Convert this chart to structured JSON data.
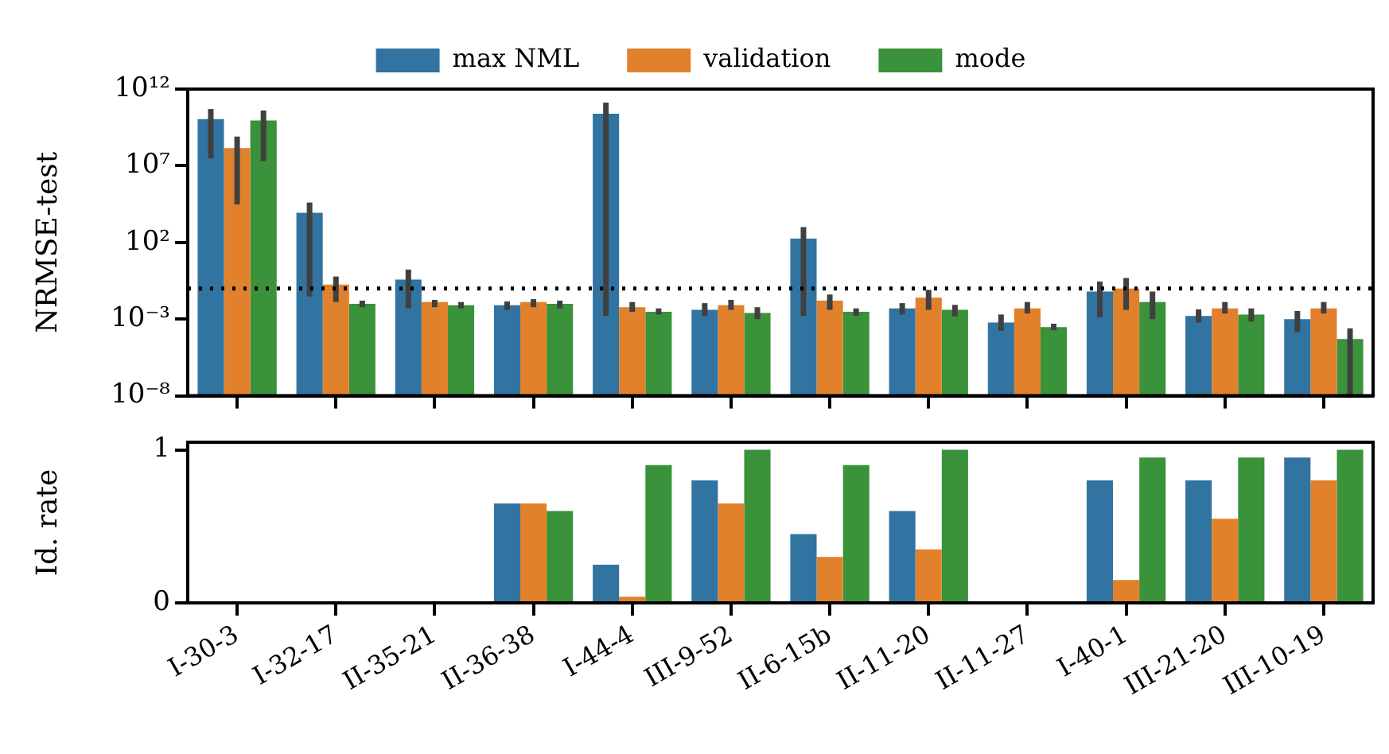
{
  "chart_data": [
    {
      "type": "bar",
      "ylabel": "NRMSE-test",
      "log": "y",
      "legend": "top",
      "tick_labels": "y",
      "categories": [
        null,
        null,
        null,
        null,
        null,
        null,
        null,
        null,
        null,
        null,
        null,
        null
      ],
      "ylim": [
        1e-08,
        1000000000000.0
      ],
      "yticks": [
        {
          "value": 1e-08,
          "label": "10⁻⁸"
        },
        {
          "value": 0.001,
          "label": "10⁻³"
        },
        {
          "value": 100,
          "label": "10²"
        },
        {
          "value": 10000000.0,
          "label": "10⁷"
        },
        {
          "value": 1000000000000.0,
          "label": "10¹²"
        }
      ],
      "ref_lines": [
        {
          "axis": "y",
          "value": 0.1,
          "color": "#000000",
          "line_style": "dotted"
        }
      ],
      "series": [
        {
          "name": "max NML",
          "color": "#3274a1",
          "values": [
            11000000000.0,
            8500,
            0.38,
            0.008,
            25000000000.0,
            0.004,
            180,
            0.005,
            0.0006,
            0.063,
            0.0016,
            0.001
          ],
          "errors": [
            [
              30000000.0,
              50000000000.0
            ],
            [
              0.03,
              40000
            ],
            [
              0.005,
              1.7
            ],
            [
              0.004,
              0.014
            ],
            [
              0.0016,
              130000000000.0
            ],
            [
              0.0016,
              0.011
            ],
            [
              0.0016,
              1000
            ],
            [
              0.002,
              0.011
            ],
            [
              0.00017,
              0.002
            ],
            [
              0.0013,
              0.28
            ],
            [
              0.0006,
              0.0043
            ],
            [
              0.00014,
              0.0034
            ]
          ]
        },
        {
          "name": "validation",
          "color": "#e1812c",
          "values": [
            140000000.0,
            0.18,
            0.013,
            0.013,
            0.006,
            0.008,
            0.016,
            0.025,
            0.005,
            0.1,
            0.005,
            0.005
          ],
          "errors": [
            [
              30000,
              800000000.0
            ],
            [
              0.013,
              0.6
            ],
            [
              0.006,
              0.018
            ],
            [
              0.006,
              0.02
            ],
            [
              0.003,
              0.013
            ],
            [
              0.004,
              0.018
            ],
            [
              0.004,
              0.04
            ],
            [
              0.004,
              0.08
            ],
            [
              0.0023,
              0.013
            ],
            [
              0.004,
              0.48
            ],
            [
              0.0023,
              0.013
            ],
            [
              0.0023,
              0.013
            ]
          ]
        },
        {
          "name": "mode",
          "color": "#3a923a",
          "values": [
            9000000000.0,
            0.01,
            0.008,
            0.01,
            0.003,
            0.0025,
            0.003,
            0.004,
            0.0003,
            0.013,
            0.002,
            5e-05
          ],
          "errors": [
            [
              20000000.0,
              40000000000.0
            ],
            [
              0.006,
              0.016
            ],
            [
              0.005,
              0.013
            ],
            [
              0.005,
              0.016
            ],
            [
              0.002,
              0.005
            ],
            [
              0.001,
              0.006
            ],
            [
              0.0016,
              0.005
            ],
            [
              0.0015,
              0.0085
            ],
            [
              0.00019,
              0.0005
            ],
            [
              0.001,
              0.063
            ],
            [
              0.0007,
              0.005
            ],
            [
              1e-08,
              0.00025
            ]
          ]
        }
      ]
    },
    {
      "type": "bar",
      "ylabel": "Id. rate",
      "categories": [
        "I-30-3",
        "I-32-17",
        "II-35-21",
        "II-36-38",
        "I-44-4",
        "III-9-52",
        "II-6-15b",
        "II-11-20",
        "II-11-27",
        "I-40-1",
        "III-21-20",
        "III-10-19"
      ],
      "ylim": [
        0,
        1.05
      ],
      "yticks": [
        0,
        1
      ],
      "series": [
        {
          "color": "#3274a1",
          "values": [
            0,
            0,
            0,
            0.65,
            0.25,
            0.8,
            0.45,
            0.6,
            0,
            0.8,
            0.8,
            0.95
          ]
        },
        {
          "color": "#e1812c",
          "values": [
            0,
            0,
            0,
            0.65,
            0.04,
            0.65,
            0.3,
            0.35,
            0,
            0.15,
            0.55,
            0.8
          ]
        },
        {
          "color": "#3a923a",
          "values": [
            0,
            0,
            0,
            0.6,
            0.9,
            1,
            0.9,
            1,
            0,
            0.95,
            0.95,
            1
          ]
        }
      ]
    }
  ]
}
